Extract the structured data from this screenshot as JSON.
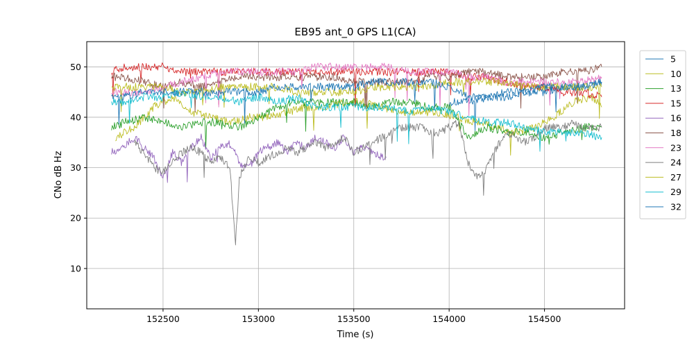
{
  "chart_data": {
    "type": "line",
    "title": "EB95 ant_0 GPS L1(CA)",
    "xlabel": "Time (s)",
    "ylabel": "CNo dB Hz",
    "xlim": [
      152100,
      154920
    ],
    "ylim": [
      2,
      55
    ],
    "xticks": [
      152500,
      153000,
      153500,
      154000,
      154500
    ],
    "yticks": [
      10,
      20,
      30,
      40,
      50
    ],
    "grid": true,
    "legend_position": "upper-right-outside",
    "series": [
      {
        "name": "5",
        "color": "#1f77b4",
        "x": [
          154000,
          154100,
          154200,
          154300,
          154400,
          154500,
          154600,
          154700,
          154800
        ],
        "values": [
          43,
          43,
          44,
          44,
          45,
          45,
          46,
          46,
          47
        ]
      },
      {
        "name": "10",
        "color": "#bcbd22",
        "x": [
          152250,
          152350,
          152450,
          152550,
          152650,
          152750,
          152850,
          152950,
          153050,
          153150,
          153250,
          153350,
          153450,
          153550,
          153650,
          153750,
          153850,
          153950,
          154050,
          154150,
          154250,
          154350,
          154450,
          154550,
          154650,
          154750,
          154800
        ],
        "values": [
          36,
          38,
          42,
          44,
          41,
          40,
          39,
          40,
          40,
          41,
          42,
          42,
          43,
          43,
          42,
          41,
          41,
          41,
          40,
          39,
          38,
          37,
          38,
          40,
          43,
          44,
          42
        ]
      },
      {
        "name": "13",
        "color": "#2ca02c",
        "x": [
          152230,
          152300,
          152400,
          152500,
          152600,
          152700,
          152800,
          152900,
          153000,
          153100,
          153200,
          153300,
          153400,
          153500,
          153600,
          153700,
          153800,
          153900,
          154000,
          154100,
          154200,
          154300,
          154400,
          154500,
          154600,
          154700,
          154800
        ],
        "values": [
          38,
          39,
          40,
          39,
          38,
          39,
          39,
          38,
          40,
          42,
          43,
          43,
          43,
          43,
          42,
          43,
          43,
          42,
          42,
          36,
          38,
          37,
          37,
          36,
          37,
          38,
          38
        ]
      },
      {
        "name": "15",
        "color": "#d62728",
        "x": [
          152230,
          152300,
          152400,
          152500,
          152600,
          152700,
          152800,
          152900,
          153000,
          153100,
          153200,
          153300,
          153400,
          153500,
          153600,
          153700,
          153800,
          153900,
          154000,
          154100,
          154200,
          154300,
          154400,
          154500,
          154600,
          154700,
          154800
        ],
        "values": [
          49,
          50,
          50,
          50,
          49,
          49,
          49,
          49,
          49,
          49,
          49,
          49,
          49,
          49,
          49,
          49,
          49,
          49,
          49,
          48,
          48,
          47,
          46,
          46,
          45,
          45,
          44
        ]
      },
      {
        "name": "16",
        "color": "#9467bd",
        "x": [
          152230,
          152280,
          152350,
          152400,
          152450,
          152500,
          152550,
          152600,
          152650,
          152700,
          152750,
          152800,
          152850,
          152900,
          152950,
          153000,
          153050,
          153100,
          153150,
          153200,
          153250,
          153300,
          153350,
          153400,
          153450,
          153500,
          153550,
          153600,
          153650,
          153670
        ],
        "values": [
          33,
          34,
          36,
          34,
          32,
          28,
          33,
          31,
          34,
          36,
          32,
          34,
          35,
          31,
          30,
          33,
          34,
          35,
          33,
          35,
          34,
          36,
          35,
          34,
          36,
          33,
          34,
          33,
          32,
          32
        ]
      },
      {
        "name": "18",
        "color": "#8c564b",
        "x": [
          152230,
          152300,
          152400,
          152500,
          152600,
          152700,
          152800,
          152900,
          153000,
          153100,
          153200,
          153300,
          153400,
          153500,
          153600,
          153700,
          153800,
          153900,
          154000,
          154100,
          154200,
          154300,
          154400,
          154500,
          154600,
          154700,
          154800
        ],
        "values": [
          48,
          48,
          47,
          46,
          47,
          46,
          47,
          48,
          48,
          48,
          48,
          48,
          48,
          47,
          47,
          47,
          47,
          48,
          48,
          49,
          49,
          48,
          48,
          48,
          49,
          49,
          50
        ]
      },
      {
        "name": "23",
        "color": "#e377c2",
        "x": [
          152230,
          152300,
          152400,
          152500,
          152600,
          152700,
          152800,
          152900,
          153000,
          153100,
          153200,
          153300,
          153400,
          153500,
          153600,
          153700,
          153800,
          153900,
          154000,
          154100,
          154200,
          154300,
          154400,
          154500,
          154600,
          154700,
          154800
        ],
        "values": [
          45,
          45,
          45,
          46,
          47,
          48,
          49,
          49,
          49,
          49,
          49,
          50,
          50,
          50,
          50,
          50,
          49,
          49,
          49,
          48,
          48,
          47,
          47,
          47,
          47,
          47,
          48
        ]
      },
      {
        "name": "24",
        "color": "#7f7f7f",
        "x": [
          152350,
          152400,
          152450,
          152500,
          152550,
          152600,
          152650,
          152700,
          152750,
          152800,
          152850,
          152880,
          152900,
          152950,
          153000,
          153050,
          153100,
          153150,
          153200,
          153250,
          153300,
          153350,
          153400,
          153450,
          153500,
          153550,
          153600,
          153650,
          153700,
          153750,
          153800,
          153850,
          153900,
          153950,
          154000,
          154050,
          154100,
          154150,
          154200,
          154250,
          154300,
          154350,
          154400,
          154450,
          154500,
          154550,
          154600,
          154650,
          154700,
          154750,
          154800
        ],
        "values": [
          35,
          33,
          30,
          29,
          31,
          33,
          34,
          33,
          31,
          32,
          30,
          15,
          28,
          32,
          31,
          32,
          33,
          34,
          33,
          34,
          35,
          34,
          35,
          36,
          33,
          34,
          35,
          36,
          37,
          38,
          38,
          38,
          37,
          37,
          38,
          39,
          31,
          28,
          30,
          34,
          37,
          36,
          35,
          36,
          38,
          38,
          38,
          39,
          38,
          38,
          38
        ]
      },
      {
        "name": "27",
        "color": "#bcbd22",
        "x": [
          152230,
          152300,
          152400,
          152500,
          152600,
          152700,
          152800,
          152900,
          153000,
          153100,
          153200,
          153300,
          153400,
          153500,
          153600,
          153700,
          153800,
          153900,
          154000,
          154100,
          154200,
          154300,
          154400,
          154500,
          154600,
          154700,
          154800
        ],
        "values": [
          46,
          46,
          46,
          46,
          45,
          45,
          46,
          46,
          46,
          46,
          45,
          45,
          45,
          45,
          46,
          46,
          46,
          46,
          47,
          47,
          47,
          47,
          46,
          46,
          46,
          46,
          46
        ]
      },
      {
        "name": "29",
        "color": "#17becf",
        "x": [
          152230,
          152300,
          152400,
          152500,
          152600,
          152700,
          152800,
          152900,
          153000,
          153100,
          153200,
          153300,
          153400,
          153500,
          153600,
          153700,
          153800,
          153900,
          154000,
          154100,
          154200,
          154300,
          154400,
          154500,
          154600,
          154700,
          154800
        ],
        "values": [
          43,
          43,
          44,
          44,
          45,
          44,
          44,
          43,
          44,
          43,
          44,
          42,
          42,
          42,
          42,
          42,
          41,
          42,
          41,
          40,
          39,
          39,
          38,
          37,
          37,
          37,
          36
        ]
      },
      {
        "name": "32",
        "color": "#1f77b4",
        "x": [
          152230,
          152300,
          152400,
          152500,
          152600,
          152700,
          152800,
          152900,
          153000,
          153100,
          153200,
          153300,
          153400,
          153500,
          153600,
          153700,
          153800,
          153900,
          154000,
          154100,
          154200,
          154300,
          154400,
          154500,
          154600,
          154700,
          154800
        ],
        "values": [
          44,
          44,
          45,
          45,
          45,
          45,
          45,
          45,
          45,
          46,
          46,
          46,
          46,
          46,
          47,
          47,
          47,
          47,
          46,
          44,
          44,
          45,
          45,
          46,
          46,
          46,
          47
        ]
      }
    ]
  }
}
